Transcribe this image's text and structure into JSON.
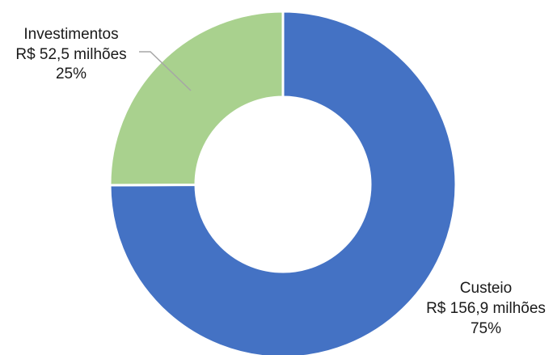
{
  "chart_data": {
    "type": "pie",
    "variant": "donut",
    "title": "",
    "legend": "none",
    "slices": [
      {
        "category": "Custeio",
        "value": 156.9,
        "value_label": "R$ 156,9 milhões",
        "percent": 75,
        "percent_label": "75%",
        "color": "#4472C4"
      },
      {
        "category": "Investimentos",
        "value": 52.5,
        "value_label": "R$ 52,5 milhões",
        "percent": 25,
        "percent_label": "25%",
        "color": "#A9D18E"
      }
    ]
  }
}
